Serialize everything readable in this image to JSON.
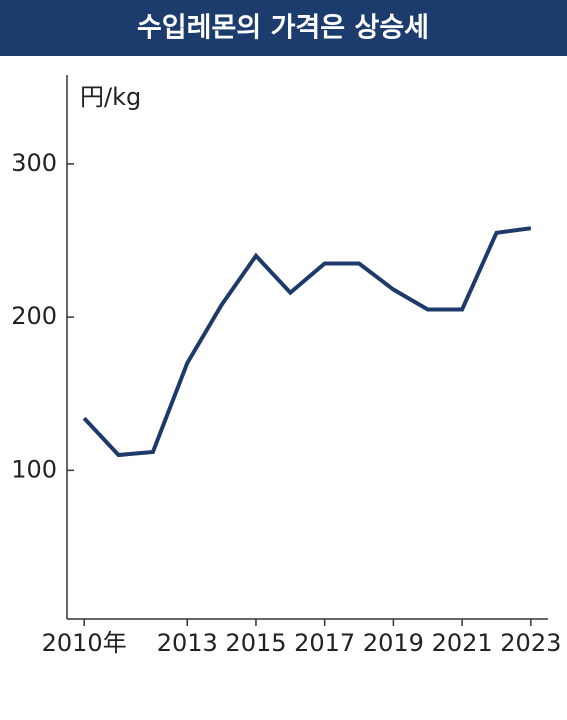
{
  "chart_data": {
    "type": "line",
    "title": "수입레몬의 가격은 상승세",
    "y_label": "円/kg",
    "x": [
      2010,
      2011,
      2012,
      2013,
      2014,
      2015,
      2016,
      2017,
      2018,
      2019,
      2020,
      2021,
      2022,
      2023
    ],
    "series": [
      {
        "color": "#1d3a6b",
        "values": [
          134,
          110,
          112,
          170,
          208,
          240,
          216,
          235,
          235,
          218,
          205,
          205,
          255,
          258
        ]
      }
    ],
    "xlim": [
      2009.5,
      2023.5
    ],
    "xticks": [
      {
        "value": 2010,
        "label": "2010年"
      },
      2013,
      2015,
      2017,
      2019,
      2021,
      2023
    ],
    "ylim": [
      3,
      358
    ],
    "yticks": [
      100,
      200,
      300
    ],
    "grid": false
  }
}
